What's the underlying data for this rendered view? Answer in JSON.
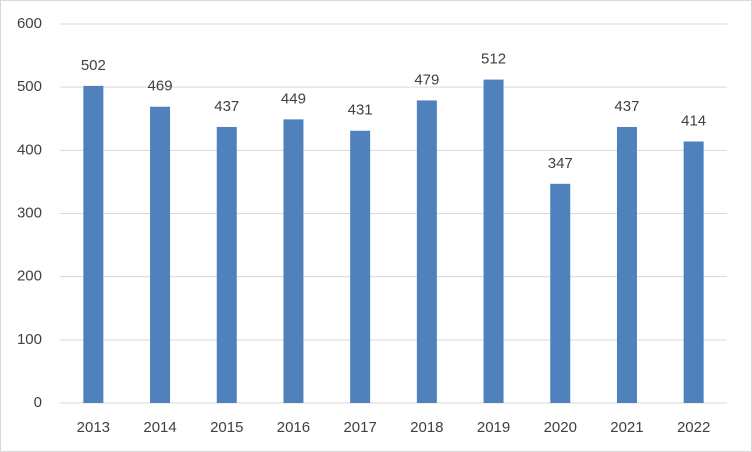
{
  "chart_data": {
    "type": "bar",
    "categories": [
      "2013",
      "2014",
      "2015",
      "2016",
      "2017",
      "2018",
      "2019",
      "2020",
      "2021",
      "2022"
    ],
    "values": [
      502,
      469,
      437,
      449,
      431,
      479,
      512,
      347,
      437,
      414
    ],
    "color": "#4f81bd",
    "ylim": [
      0,
      600
    ],
    "yticks": [
      0,
      100,
      200,
      300,
      400,
      500,
      600
    ],
    "grid": true,
    "data_labels": true
  }
}
